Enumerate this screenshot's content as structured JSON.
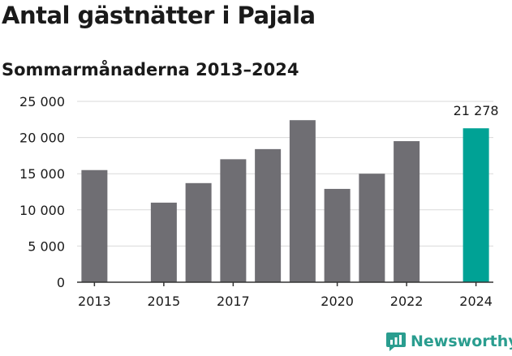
{
  "header": {
    "title": "Antal gästnätter i Pajala",
    "subtitle": "Sommarmånaderna 2013–2024"
  },
  "brand": {
    "name": "Newsworthy",
    "color": "#2a9d8f",
    "icon": "newsworthy-logo-icon"
  },
  "colors": {
    "bar": "#6f6e73",
    "highlight": "#00a295",
    "grid": "#d9d9d9",
    "axis": "#333333"
  },
  "chart_data": {
    "type": "bar",
    "categories": [
      2013,
      2014,
      2015,
      2016,
      2017,
      2018,
      2019,
      2020,
      2021,
      2022,
      2023,
      2024
    ],
    "values": [
      15500,
      null,
      11000,
      13700,
      17000,
      18400,
      22400,
      12900,
      15000,
      19500,
      null,
      21278
    ],
    "highlight_category": 2024,
    "ylim": [
      0,
      25000
    ],
    "yticks": [
      0,
      5000,
      10000,
      15000,
      20000,
      25000
    ],
    "ytick_labels": [
      "0",
      "5 000",
      "10 000",
      "15 000",
      "20 000",
      "25 000"
    ],
    "xtick_labels": [
      "2013",
      "2015",
      "2017",
      "2020",
      "2022",
      "2024"
    ],
    "data_labels": [
      {
        "category": 2024,
        "text": "21 278"
      }
    ],
    "grid": true,
    "legend": "none"
  }
}
